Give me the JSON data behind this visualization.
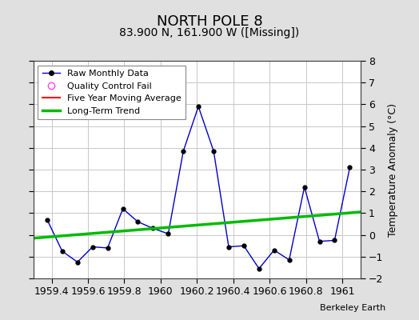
{
  "title": "NORTH POLE 8",
  "subtitle": "83.900 N, 161.900 W ([Missing])",
  "ylabel": "Temperature Anomaly (°C)",
  "attribution": "Berkeley Earth",
  "xlim": [
    1959.3,
    1961.1
  ],
  "ylim": [
    -2,
    8
  ],
  "yticks": [
    -2,
    -1,
    0,
    1,
    2,
    3,
    4,
    5,
    6,
    7,
    8
  ],
  "xticks": [
    1959.4,
    1959.6,
    1959.8,
    1960.0,
    1960.2,
    1960.4,
    1960.6,
    1960.8,
    1961.0
  ],
  "raw_x": [
    1959.375,
    1959.458,
    1959.542,
    1959.625,
    1959.708,
    1959.792,
    1959.875,
    1959.958,
    1960.042,
    1960.125,
    1960.208,
    1960.292,
    1960.375,
    1960.458,
    1960.542,
    1960.625,
    1960.708,
    1960.792,
    1960.875,
    1960.958,
    1961.042
  ],
  "raw_y": [
    0.7,
    -0.75,
    -1.25,
    -0.55,
    -0.6,
    1.2,
    0.6,
    0.3,
    0.05,
    3.85,
    5.9,
    3.85,
    -0.55,
    -0.5,
    -1.55,
    -0.7,
    -1.15,
    2.2,
    -0.3,
    -0.25,
    3.1
  ],
  "trend_x": [
    1959.3,
    1961.1
  ],
  "trend_y": [
    -0.15,
    1.05
  ],
  "raw_color": "#0000cc",
  "trend_color": "#00bb00",
  "moving_avg_color": "#ff0000",
  "legend_labels": [
    "Raw Monthly Data",
    "Quality Control Fail",
    "Five Year Moving Average",
    "Long-Term Trend"
  ],
  "background_color": "#e0e0e0",
  "plot_bg_color": "#ffffff",
  "grid_color": "#c8c8c8",
  "title_fontsize": 13,
  "subtitle_fontsize": 10,
  "tick_fontsize": 9,
  "ylabel_fontsize": 9
}
